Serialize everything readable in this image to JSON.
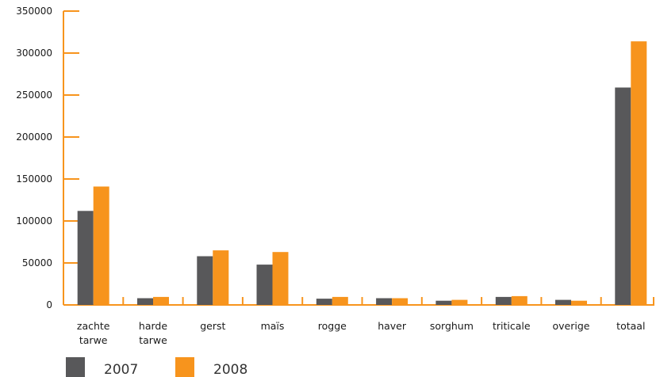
{
  "chart_data": {
    "type": "bar",
    "title": "",
    "xlabel": "",
    "ylabel": "",
    "categories": [
      [
        "zachte",
        "tarwe"
      ],
      [
        "harde",
        "tarwe"
      ],
      [
        "gerst"
      ],
      [
        "maïs"
      ],
      [
        "rogge"
      ],
      [
        "haver"
      ],
      [
        "sorghum"
      ],
      [
        "triticale"
      ],
      [
        "overige"
      ],
      [
        "totaal"
      ]
    ],
    "series": [
      {
        "name": "2007",
        "color": "#58585a",
        "values": [
          112000,
          8000,
          58000,
          48000,
          7500,
          8000,
          5000,
          9500,
          6000,
          259000
        ]
      },
      {
        "name": "2008",
        "color": "#f7941d",
        "values": [
          141000,
          9500,
          65000,
          63000,
          9500,
          8000,
          6000,
          10500,
          5000,
          314000
        ]
      }
    ],
    "ylim": [
      0,
      350000
    ],
    "yticks": [
      0,
      50000,
      100000,
      150000,
      200000,
      250000,
      300000,
      350000
    ],
    "axis_color": "#f7941d",
    "grid": false,
    "legend_position": "bottom-left"
  }
}
